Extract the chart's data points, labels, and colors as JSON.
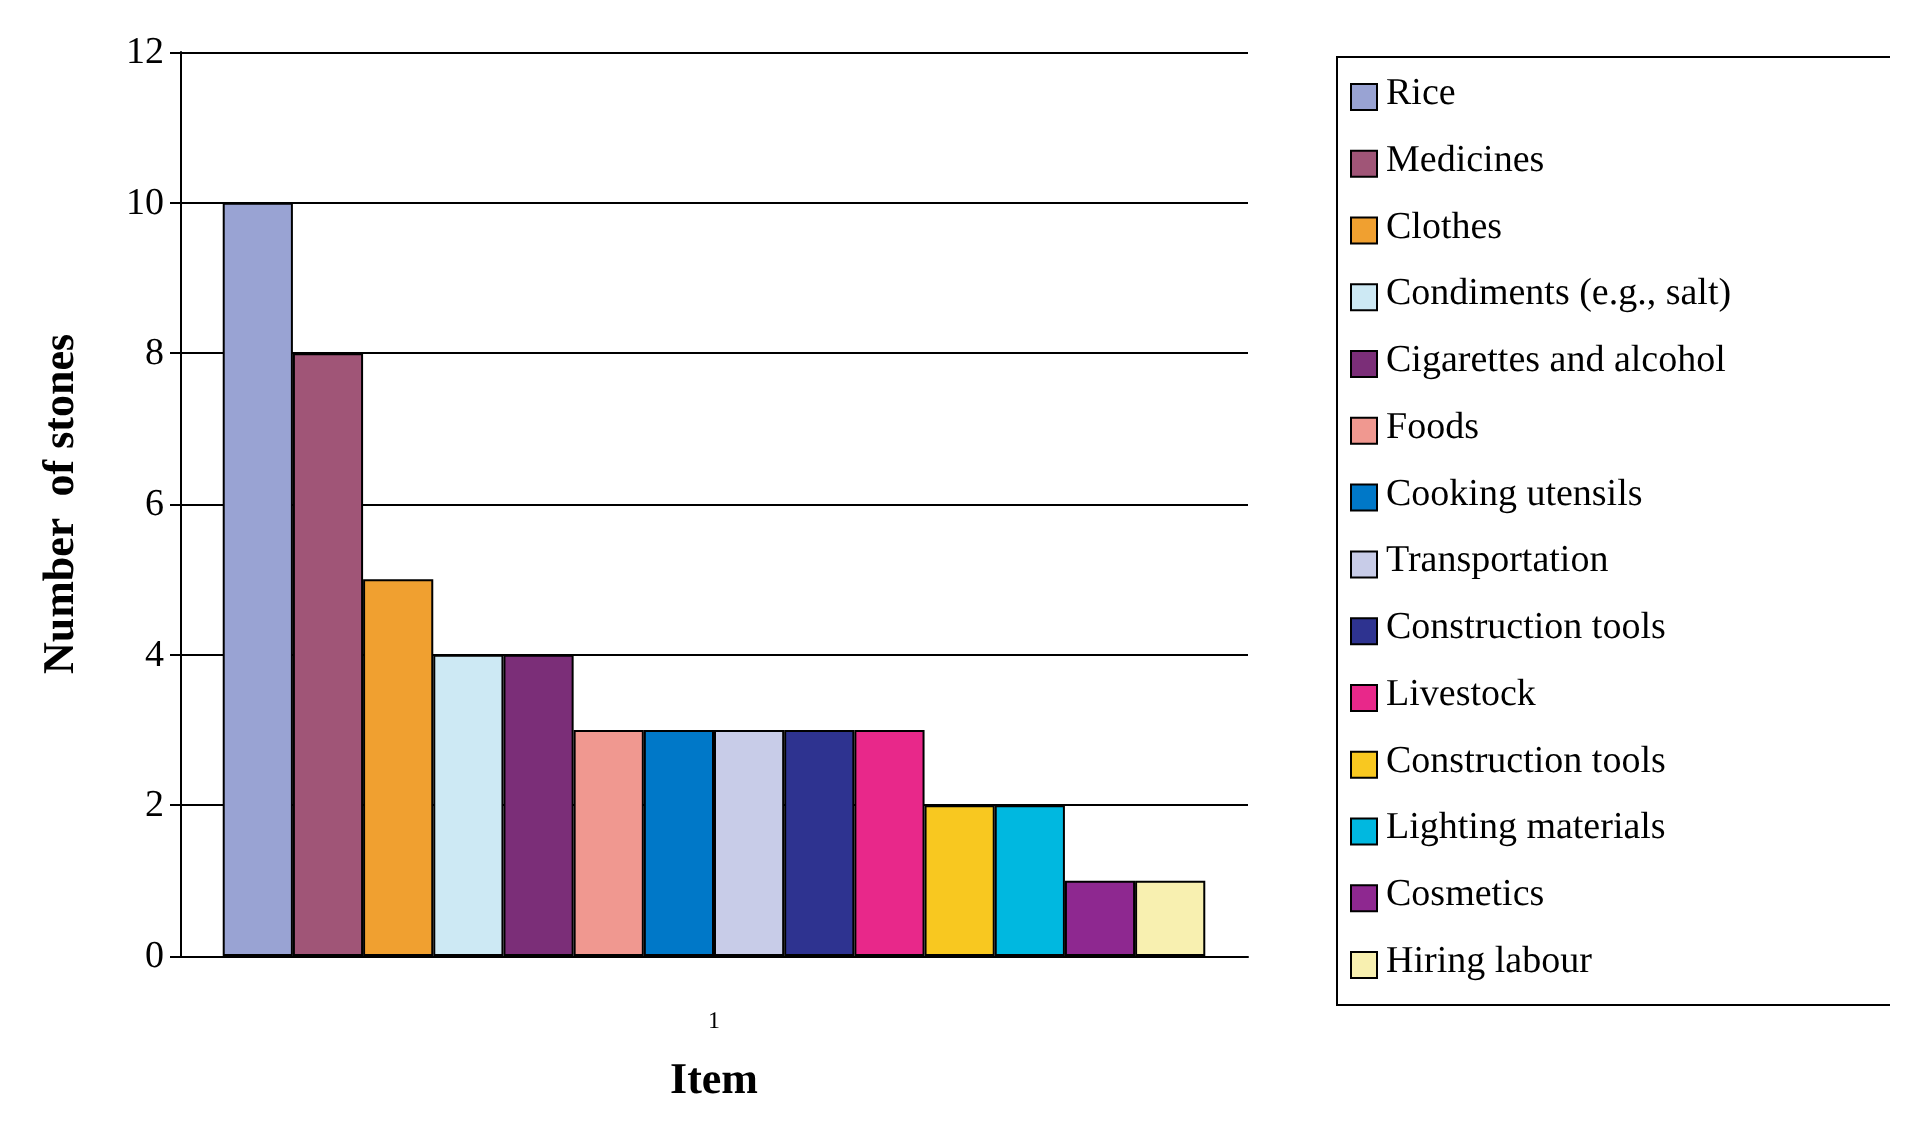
{
  "chart_data": {
    "type": "bar",
    "xlabel": "Item",
    "ylabel": "Number  of stones",
    "categories": [
      "1"
    ],
    "series": [
      {
        "name": "Rice",
        "color": "#99a3d3",
        "values": [
          10
        ]
      },
      {
        "name": "Medicines",
        "color": "#a05577",
        "values": [
          8
        ]
      },
      {
        "name": "Clothes",
        "color": "#f0a030",
        "values": [
          5
        ]
      },
      {
        "name": "Condiments (e.g., salt)",
        "color": "#cde9f4",
        "values": [
          4
        ]
      },
      {
        "name": "Cigarettes and alcohol",
        "color": "#7b2e78",
        "values": [
          4
        ]
      },
      {
        "name": "Foods",
        "color": "#f09890",
        "values": [
          3
        ]
      },
      {
        "name": "Cooking utensils",
        "color": "#0078c8",
        "values": [
          3
        ]
      },
      {
        "name": "Transportation",
        "color": "#c8cce8",
        "values": [
          3
        ]
      },
      {
        "name": "Construction tools",
        "color": "#2e3390",
        "values": [
          3
        ]
      },
      {
        "name": "Livestock",
        "color": "#e8288a",
        "values": [
          3
        ]
      },
      {
        "name": "Construction tools",
        "color": "#f8c820",
        "values": [
          2
        ]
      },
      {
        "name": "Lighting materials",
        "color": "#00b8e0",
        "values": [
          2
        ]
      },
      {
        "name": "Cosmetics",
        "color": "#8e2890",
        "values": [
          1
        ]
      },
      {
        "name": "Hiring labour",
        "color": "#f8f0b0",
        "values": [
          1
        ]
      }
    ],
    "ylim": [
      0,
      12
    ],
    "yticks": [
      0,
      2,
      4,
      6,
      8,
      10,
      12
    ],
    "grid": "y",
    "legend": "right"
  }
}
